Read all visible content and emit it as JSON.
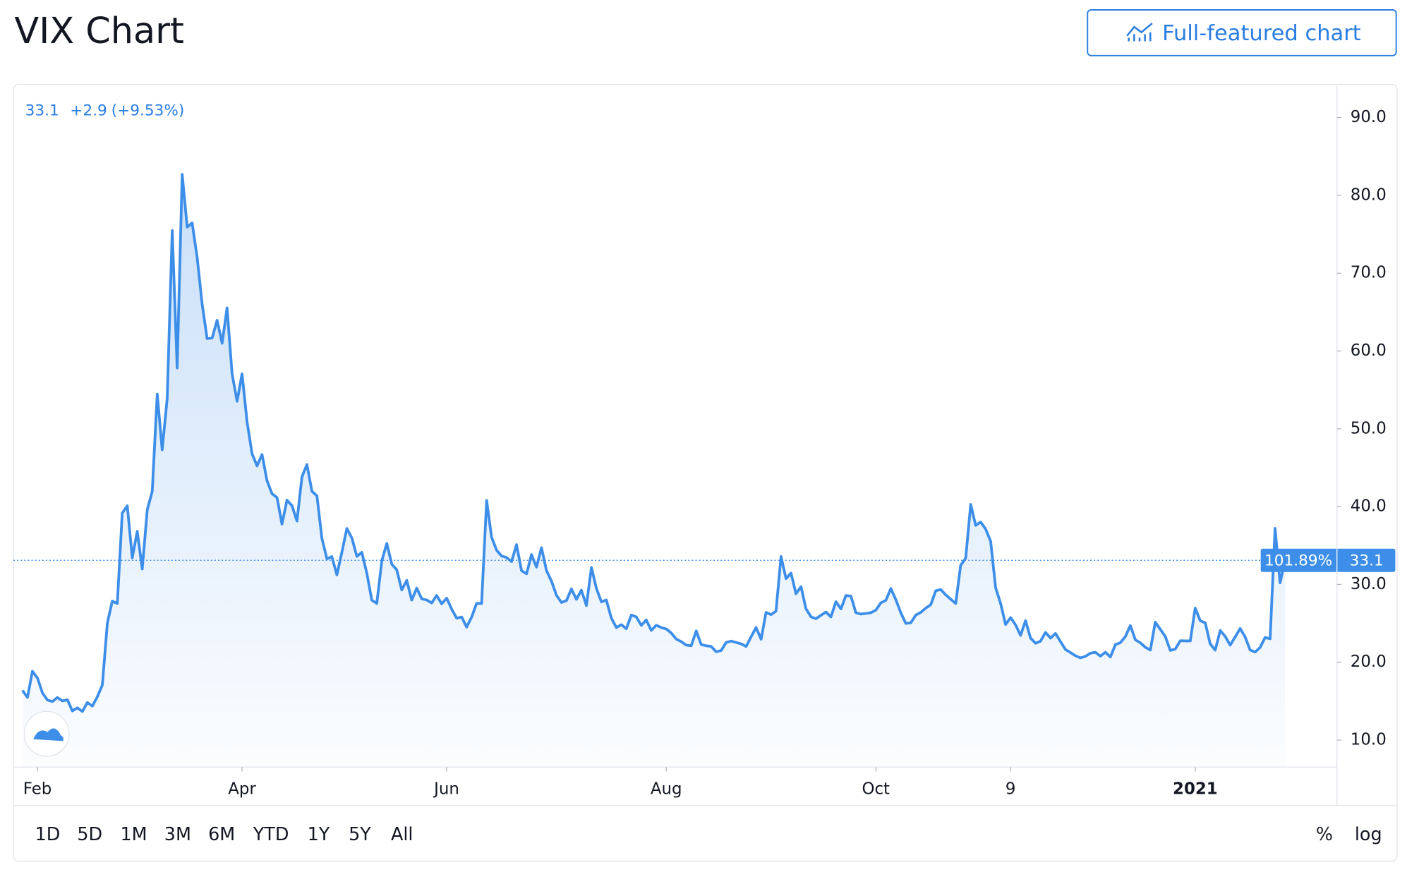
{
  "header": {
    "title": "VIX Chart",
    "button": "Full-featured chart"
  },
  "chart_data": {
    "type": "line",
    "legend_text": {
      "price": "33.1",
      "change": "+2.9",
      "change_pct": "(+9.53%)"
    },
    "last_value": 33.1,
    "last_change_label": "101.89%",
    "series": [
      {
        "color": "#3d8ee8",
        "values": [
          16.39,
          15.49,
          18.84,
          17.97,
          16.05,
          15.15,
          14.96,
          15.47,
          15.04,
          15.18,
          13.74,
          14.15,
          13.68,
          14.83,
          14.38,
          15.56,
          17.08,
          25.03,
          27.85,
          27.56,
          39.16,
          40.11,
          33.42,
          36.82,
          31.99,
          39.62,
          41.94,
          54.46,
          47.3,
          53.9,
          75.47,
          57.83,
          82.69,
          75.91,
          76.45,
          72.0,
          66.04,
          61.59,
          61.67,
          63.95,
          61.0,
          65.54,
          57.08,
          53.54,
          57.06,
          50.91,
          46.8,
          45.24,
          46.7,
          43.35,
          41.67,
          41.17,
          37.76,
          40.84,
          40.11,
          38.15,
          43.83,
          45.41,
          41.98,
          41.38,
          35.93,
          33.29,
          33.57,
          31.23,
          34.15,
          37.19,
          35.97,
          33.61,
          34.12,
          31.44,
          27.98,
          27.57,
          33.04,
          35.28,
          32.61,
          31.89,
          29.3,
          30.53,
          27.99,
          29.53,
          28.16,
          28.01,
          27.62,
          28.59,
          27.51,
          28.23,
          26.84,
          25.66,
          25.81,
          24.52,
          25.81,
          27.57,
          27.57,
          40.79,
          36.09,
          34.4,
          33.67,
          33.47,
          32.94,
          35.12,
          31.77,
          31.37,
          33.84,
          32.22,
          34.73,
          31.78,
          30.43,
          28.62,
          27.68,
          27.94,
          29.43,
          28.08,
          29.26,
          27.29,
          32.19,
          29.52,
          27.76,
          28.0,
          25.68,
          24.46,
          24.84,
          24.32,
          26.08,
          25.84,
          24.74,
          25.44,
          24.1,
          24.76,
          24.46,
          24.28,
          23.76,
          22.99,
          22.65,
          22.21,
          22.13,
          24.03,
          22.28,
          22.13,
          22.05,
          21.35,
          21.51,
          22.54,
          22.72,
          22.54,
          22.37,
          22.03,
          23.27,
          24.47,
          22.96,
          26.41,
          26.12,
          26.57,
          33.6,
          30.75,
          31.46,
          28.81,
          29.71,
          26.87,
          25.85,
          25.59,
          26.04,
          26.46,
          25.83,
          27.78,
          26.86,
          28.58,
          28.51,
          26.38,
          26.19,
          26.27,
          26.37,
          26.7,
          27.63,
          27.96,
          29.48,
          28.06,
          26.36,
          25.0,
          25.07,
          26.07,
          26.4,
          26.97,
          27.41,
          29.18,
          29.35,
          28.65,
          28.11,
          27.55,
          32.46,
          33.35,
          40.28,
          37.59,
          38.02,
          37.13,
          35.55,
          29.57,
          27.58,
          24.86,
          25.75,
          24.8,
          23.45,
          25.35,
          23.1,
          22.45,
          22.71,
          23.84,
          23.11,
          23.7,
          22.66,
          21.64,
          21.25,
          20.84,
          20.57,
          20.77,
          21.17,
          21.28,
          20.79,
          21.3,
          20.68,
          22.27,
          22.52,
          23.31,
          24.72,
          22.89,
          22.5,
          21.93,
          21.57,
          25.16,
          24.23,
          23.31,
          21.53,
          21.7,
          22.77,
          22.75,
          22.75,
          26.97,
          25.34,
          25.07,
          22.37,
          21.56,
          24.08,
          23.33,
          22.21,
          23.25,
          24.34,
          23.24,
          21.58,
          21.32,
          21.91,
          23.19,
          23.02,
          37.21,
          30.21,
          33.09
        ]
      }
    ],
    "xlim": [
      -1.8,
      263.4
    ],
    "xticks": [
      {
        "value": 3,
        "label": "Feb"
      },
      {
        "value": 44,
        "label": "Apr"
      },
      {
        "value": 85,
        "label": "Jun"
      },
      {
        "value": 129,
        "label": "Aug"
      },
      {
        "value": 171,
        "label": "Oct"
      },
      {
        "value": 198,
        "label": "9"
      },
      {
        "value": 235,
        "label": "2021"
      }
    ],
    "ylim": [
      6.54,
      94.15
    ],
    "yticks": [
      {
        "value": 10,
        "label": "10.0"
      },
      {
        "value": 20,
        "label": "20.0"
      },
      {
        "value": 30,
        "label": "30.0"
      },
      {
        "value": 40,
        "label": "40.0"
      },
      {
        "value": 50,
        "label": "50.0"
      },
      {
        "value": 60,
        "label": "60.0"
      },
      {
        "value": 70,
        "label": "70.0"
      },
      {
        "value": 80,
        "label": "80.0"
      },
      {
        "value": 90,
        "label": "90.0"
      }
    ],
    "ranges": [
      "1D",
      "5D",
      "1M",
      "3M",
      "6M",
      "YTD",
      "1Y",
      "5Y",
      "All"
    ],
    "scale_buttons": [
      "%",
      "log"
    ]
  }
}
